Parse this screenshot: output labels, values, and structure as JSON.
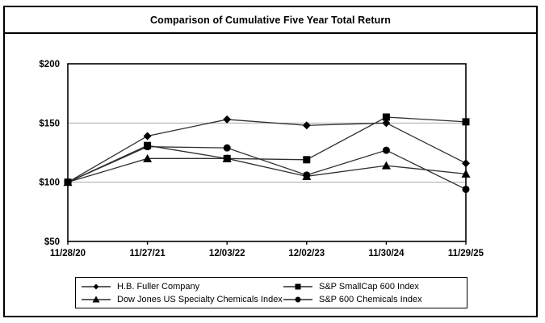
{
  "figure": {
    "background": "#ffffff",
    "border_color": "#000000"
  },
  "chart_data": {
    "type": "line",
    "title": "Comparison of Cumulative Five Year Total Return",
    "x_labels": [
      "11/28/20",
      "11/27/21",
      "12/03/22",
      "12/02/23",
      "11/30/24",
      "11/29/25"
    ],
    "xlabel": "",
    "ylabel": "",
    "ylim": [
      50,
      200
    ],
    "y_tick_step": 50,
    "y_tick_prefix": "$",
    "y_tick_labels": [
      "$50",
      "$100",
      "$150",
      "$200"
    ],
    "grid": "horizontal",
    "legend_position": "bottom",
    "series": [
      {
        "name": "H.B. Fuller Company",
        "marker": "diamond",
        "values": [
          100,
          139,
          153,
          148,
          150,
          116
        ]
      },
      {
        "name": "S&P SmallCap 600 Index",
        "marker": "square",
        "values": [
          100,
          131,
          120,
          119,
          155,
          151
        ]
      },
      {
        "name": "Dow Jones US Specialty Chemicals Index",
        "marker": "triangle",
        "values": [
          100,
          120,
          120,
          105,
          114,
          107
        ]
      },
      {
        "name": "S&P 600 Chemicals Index",
        "marker": "circle",
        "values": [
          100,
          130,
          129,
          106,
          127,
          94
        ]
      }
    ],
    "colors": {
      "line": "#2e2e2e",
      "marker": "#000000",
      "grid": "#a8a8a8",
      "axis": "#000000",
      "text": "#000000"
    }
  }
}
